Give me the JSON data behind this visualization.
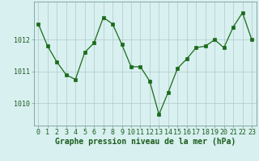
{
  "x": [
    0,
    1,
    2,
    3,
    4,
    5,
    6,
    7,
    8,
    9,
    10,
    11,
    12,
    13,
    14,
    15,
    16,
    17,
    18,
    19,
    20,
    21,
    22,
    23
  ],
  "y": [
    1012.5,
    1011.8,
    1011.3,
    1010.9,
    1010.75,
    1011.6,
    1011.9,
    1012.7,
    1012.5,
    1011.85,
    1011.15,
    1011.15,
    1010.7,
    1009.65,
    1010.35,
    1011.1,
    1011.4,
    1011.75,
    1011.8,
    1012.0,
    1011.75,
    1012.4,
    1012.85,
    1012.0
  ],
  "line_color": "#1a6b1a",
  "marker": "s",
  "marker_size": 2.2,
  "bg_color": "#d8f0f0",
  "grid_color": "#b0c8c8",
  "xlabel": "Graphe pression niveau de la mer (hPa)",
  "xlabel_fontsize": 7.0,
  "yticks": [
    1010,
    1011,
    1012
  ],
  "ylim": [
    1009.3,
    1013.2
  ],
  "xlim": [
    -0.5,
    23.5
  ],
  "xtick_labels": [
    "0",
    "1",
    "2",
    "3",
    "4",
    "5",
    "6",
    "7",
    "8",
    "9",
    "10",
    "11",
    "12",
    "13",
    "14",
    "15",
    "16",
    "17",
    "18",
    "19",
    "20",
    "21",
    "22",
    "23"
  ],
  "tick_fontsize": 6.0,
  "line_width": 0.9
}
